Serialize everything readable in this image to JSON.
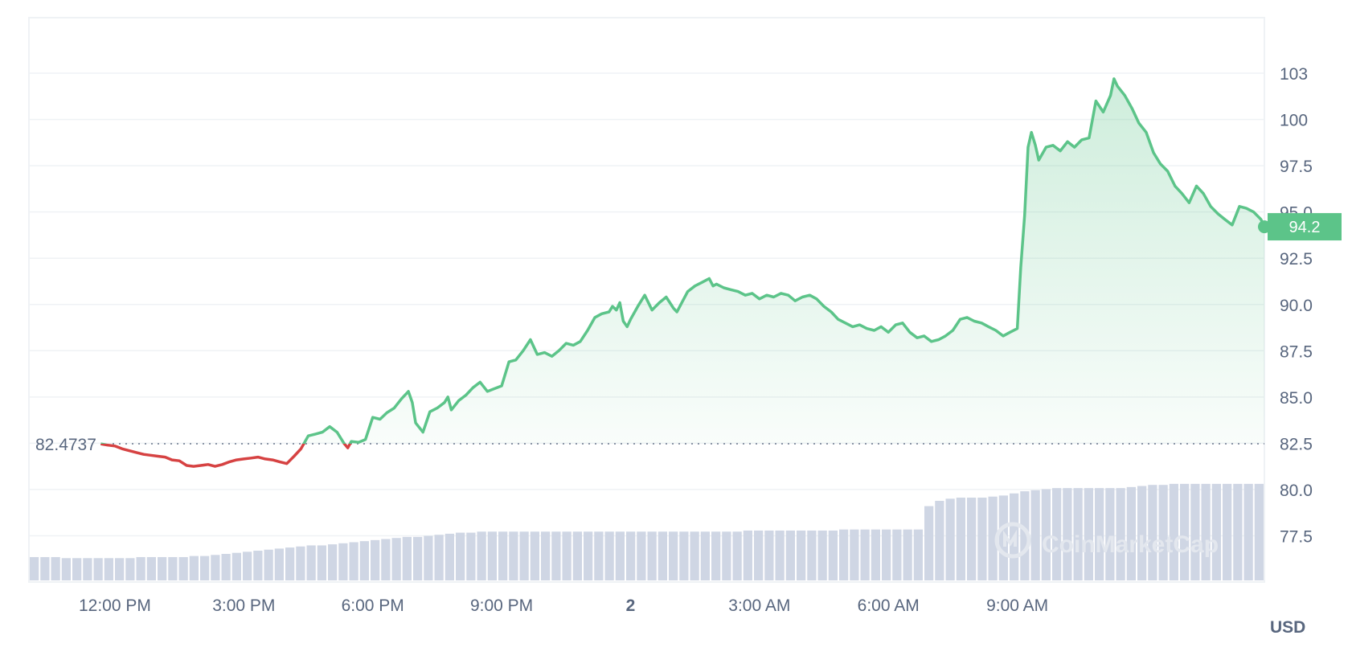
{
  "chart_data": {
    "type": "line",
    "currency": "USD",
    "baseline_value": 82.4737,
    "baseline_label": "82.4737",
    "current_value": 94.2,
    "current_label": "94.2",
    "watermark": "CoinMarketCap",
    "ylim": [
      75.0,
      105.5
    ],
    "y_ticks": [
      "77.5",
      "80.0",
      "82.5",
      "85.0",
      "87.5",
      "90.0",
      "92.5",
      "95.0",
      "97.5",
      "100",
      "103"
    ],
    "y_tick_values": [
      77.5,
      80.0,
      82.5,
      85.0,
      87.5,
      90.0,
      92.5,
      95.0,
      97.5,
      100,
      102.5
    ],
    "x_range_hours": [
      10.0,
      34.5
    ],
    "x_ticks": [
      {
        "label": "12:00 PM",
        "hour": 12,
        "bold": false
      },
      {
        "label": "3:00 PM",
        "hour": 15,
        "bold": false
      },
      {
        "label": "6:00 PM",
        "hour": 18,
        "bold": false
      },
      {
        "label": "9:00 PM",
        "hour": 21,
        "bold": false
      },
      {
        "label": "2",
        "hour": 24,
        "bold": true
      },
      {
        "label": "3:00 AM",
        "hour": 27,
        "bold": false
      },
      {
        "label": "6:00 AM",
        "hour": 30,
        "bold": false
      },
      {
        "label": "9:00 AM",
        "hour": 33,
        "bold": false
      }
    ],
    "colors": {
      "up": "#5cc489",
      "down": "#d64242",
      "volume": "#cfd6e4",
      "grid": "#eff2f5",
      "axis_text": "#58667e"
    },
    "price": [
      [
        11.67,
        82.47
      ],
      [
        11.83,
        82.4
      ],
      [
        12.0,
        82.35
      ],
      [
        12.17,
        82.2
      ],
      [
        12.33,
        82.1
      ],
      [
        12.5,
        82.0
      ],
      [
        12.67,
        81.9
      ],
      [
        12.83,
        81.85
      ],
      [
        13.0,
        81.8
      ],
      [
        13.17,
        81.75
      ],
      [
        13.33,
        81.6
      ],
      [
        13.5,
        81.55
      ],
      [
        13.67,
        81.3
      ],
      [
        13.83,
        81.25
      ],
      [
        14.0,
        81.3
      ],
      [
        14.17,
        81.35
      ],
      [
        14.33,
        81.25
      ],
      [
        14.5,
        81.35
      ],
      [
        14.67,
        81.5
      ],
      [
        14.83,
        81.6
      ],
      [
        15.0,
        81.65
      ],
      [
        15.17,
        81.7
      ],
      [
        15.33,
        81.75
      ],
      [
        15.5,
        81.65
      ],
      [
        15.67,
        81.6
      ],
      [
        15.83,
        81.5
      ],
      [
        16.0,
        81.4
      ],
      [
        16.17,
        81.8
      ],
      [
        16.33,
        82.2
      ],
      [
        16.5,
        82.9
      ],
      [
        16.67,
        83.0
      ],
      [
        16.83,
        83.1
      ],
      [
        17.0,
        83.4
      ],
      [
        17.17,
        83.1
      ],
      [
        17.33,
        82.5
      ],
      [
        17.42,
        82.25
      ],
      [
        17.5,
        82.6
      ],
      [
        17.67,
        82.55
      ],
      [
        17.83,
        82.7
      ],
      [
        18.0,
        83.9
      ],
      [
        18.17,
        83.8
      ],
      [
        18.33,
        84.15
      ],
      [
        18.5,
        84.4
      ],
      [
        18.67,
        84.9
      ],
      [
        18.83,
        85.3
      ],
      [
        18.92,
        84.7
      ],
      [
        19.0,
        83.6
      ],
      [
        19.17,
        83.1
      ],
      [
        19.33,
        84.2
      ],
      [
        19.5,
        84.4
      ],
      [
        19.67,
        84.7
      ],
      [
        19.75,
        85.0
      ],
      [
        19.83,
        84.3
      ],
      [
        20.0,
        84.8
      ],
      [
        20.17,
        85.1
      ],
      [
        20.33,
        85.5
      ],
      [
        20.5,
        85.8
      ],
      [
        20.67,
        85.3
      ],
      [
        20.83,
        85.45
      ],
      [
        21.0,
        85.6
      ],
      [
        21.17,
        86.9
      ],
      [
        21.33,
        87.0
      ],
      [
        21.5,
        87.5
      ],
      [
        21.67,
        88.1
      ],
      [
        21.83,
        87.3
      ],
      [
        22.0,
        87.4
      ],
      [
        22.17,
        87.2
      ],
      [
        22.33,
        87.5
      ],
      [
        22.5,
        87.9
      ],
      [
        22.67,
        87.8
      ],
      [
        22.83,
        88.0
      ],
      [
        23.0,
        88.6
      ],
      [
        23.17,
        89.3
      ],
      [
        23.33,
        89.5
      ],
      [
        23.5,
        89.6
      ],
      [
        23.58,
        89.9
      ],
      [
        23.67,
        89.7
      ],
      [
        23.75,
        90.1
      ],
      [
        23.83,
        89.1
      ],
      [
        23.92,
        88.8
      ],
      [
        24.0,
        89.2
      ],
      [
        24.17,
        89.9
      ],
      [
        24.33,
        90.5
      ],
      [
        24.5,
        89.7
      ],
      [
        24.67,
        90.1
      ],
      [
        24.83,
        90.4
      ],
      [
        25.0,
        89.8
      ],
      [
        25.08,
        89.6
      ],
      [
        25.17,
        90.0
      ],
      [
        25.33,
        90.7
      ],
      [
        25.5,
        91.0
      ],
      [
        25.67,
        91.2
      ],
      [
        25.83,
        91.4
      ],
      [
        25.92,
        91.0
      ],
      [
        26.0,
        91.1
      ],
      [
        26.17,
        90.9
      ],
      [
        26.33,
        90.8
      ],
      [
        26.5,
        90.7
      ],
      [
        26.67,
        90.5
      ],
      [
        26.83,
        90.6
      ],
      [
        27.0,
        90.3
      ],
      [
        27.17,
        90.5
      ],
      [
        27.33,
        90.4
      ],
      [
        27.5,
        90.6
      ],
      [
        27.67,
        90.5
      ],
      [
        27.83,
        90.2
      ],
      [
        28.0,
        90.4
      ],
      [
        28.17,
        90.5
      ],
      [
        28.33,
        90.3
      ],
      [
        28.5,
        89.9
      ],
      [
        28.67,
        89.6
      ],
      [
        28.83,
        89.2
      ],
      [
        29.0,
        89.0
      ],
      [
        29.17,
        88.8
      ],
      [
        29.33,
        88.9
      ],
      [
        29.5,
        88.7
      ],
      [
        29.67,
        88.6
      ],
      [
        29.83,
        88.8
      ],
      [
        30.0,
        88.5
      ],
      [
        30.17,
        88.9
      ],
      [
        30.33,
        89.0
      ],
      [
        30.5,
        88.5
      ],
      [
        30.67,
        88.2
      ],
      [
        30.83,
        88.3
      ],
      [
        31.0,
        88.0
      ],
      [
        31.17,
        88.1
      ],
      [
        31.33,
        88.3
      ],
      [
        31.5,
        88.6
      ],
      [
        31.67,
        89.2
      ],
      [
        31.83,
        89.3
      ],
      [
        32.0,
        89.1
      ],
      [
        32.17,
        89.0
      ],
      [
        32.33,
        88.8
      ],
      [
        32.5,
        88.6
      ],
      [
        32.67,
        88.3
      ],
      [
        32.83,
        88.5
      ],
      [
        33.0,
        88.7
      ],
      [
        33.08,
        92.0
      ],
      [
        33.17,
        94.8
      ],
      [
        33.25,
        98.5
      ],
      [
        33.33,
        99.3
      ],
      [
        33.42,
        98.6
      ],
      [
        33.5,
        97.8
      ],
      [
        33.67,
        98.5
      ],
      [
        33.83,
        98.6
      ],
      [
        34.0,
        98.3
      ],
      [
        34.17,
        98.8
      ],
      [
        34.33,
        98.5
      ],
      [
        34.5,
        98.9
      ],
      [
        34.67,
        99.0
      ],
      [
        34.83,
        101.0
      ],
      [
        35.0,
        100.4
      ],
      [
        35.17,
        101.3
      ],
      [
        35.25,
        102.2
      ],
      [
        35.33,
        101.8
      ],
      [
        35.5,
        101.3
      ],
      [
        35.67,
        100.6
      ],
      [
        35.83,
        99.8
      ],
      [
        36.0,
        99.3
      ],
      [
        36.17,
        98.2
      ],
      [
        36.33,
        97.6
      ],
      [
        36.5,
        97.2
      ],
      [
        36.67,
        96.4
      ],
      [
        36.83,
        96.0
      ],
      [
        37.0,
        95.5
      ],
      [
        37.17,
        96.4
      ],
      [
        37.33,
        96.0
      ],
      [
        37.5,
        95.3
      ],
      [
        37.67,
        94.9
      ],
      [
        37.83,
        94.6
      ],
      [
        38.0,
        94.3
      ],
      [
        38.17,
        95.3
      ],
      [
        38.33,
        95.2
      ],
      [
        38.5,
        95.0
      ],
      [
        38.67,
        94.6
      ],
      [
        38.75,
        94.2
      ]
    ],
    "volume_relative": [
      0.22,
      0.22,
      0.22,
      0.21,
      0.21,
      0.21,
      0.21,
      0.21,
      0.21,
      0.21,
      0.22,
      0.22,
      0.22,
      0.22,
      0.22,
      0.23,
      0.23,
      0.24,
      0.25,
      0.26,
      0.27,
      0.28,
      0.29,
      0.3,
      0.31,
      0.32,
      0.33,
      0.33,
      0.34,
      0.35,
      0.36,
      0.37,
      0.38,
      0.39,
      0.4,
      0.41,
      0.41,
      0.42,
      0.43,
      0.44,
      0.45,
      0.45,
      0.46,
      0.46,
      0.46,
      0.46,
      0.46,
      0.46,
      0.46,
      0.46,
      0.46,
      0.46,
      0.46,
      0.46,
      0.46,
      0.46,
      0.46,
      0.46,
      0.46,
      0.46,
      0.46,
      0.46,
      0.46,
      0.46,
      0.46,
      0.46,
      0.46,
      0.47,
      0.47,
      0.47,
      0.47,
      0.47,
      0.47,
      0.47,
      0.47,
      0.47,
      0.48,
      0.48,
      0.48,
      0.48,
      0.48,
      0.48,
      0.48,
      0.48,
      0.7,
      0.75,
      0.77,
      0.78,
      0.78,
      0.78,
      0.79,
      0.8,
      0.82,
      0.84,
      0.85,
      0.86,
      0.87,
      0.87,
      0.87,
      0.87,
      0.87,
      0.87,
      0.87,
      0.88,
      0.89,
      0.9,
      0.9,
      0.91,
      0.91,
      0.91,
      0.91,
      0.91,
      0.91,
      0.91,
      0.91,
      0.91
    ]
  }
}
